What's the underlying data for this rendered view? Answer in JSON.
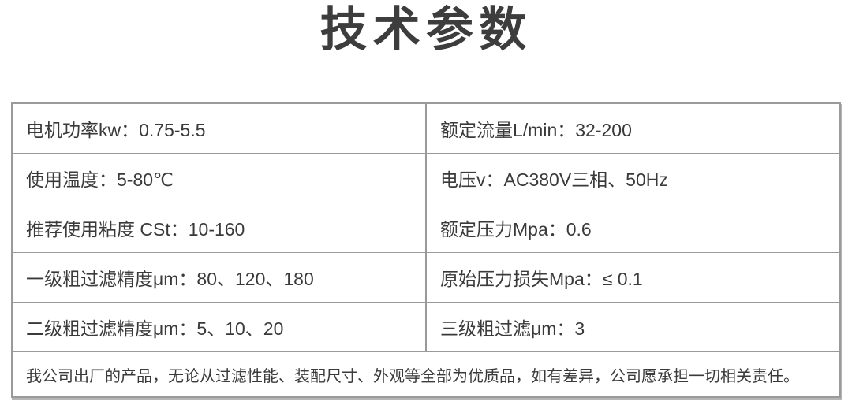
{
  "page": {
    "title": "技术参数"
  },
  "table": {
    "rows": [
      {
        "left": "电机功率kw：0.75-5.5",
        "right": "额定流量L/min：32-200"
      },
      {
        "left": "使用温度：5-80℃",
        "right": "电压v：AC380V三相、50Hz"
      },
      {
        "left": "推荐使用粘度 CSt：10-160",
        "right": "额定压力Mpa：0.6"
      },
      {
        "left": "一级粗过滤精度μm：80、120、180",
        "right": "原始压力损失Mpa：≤ 0.1"
      },
      {
        "left": "二级粗过滤精度μm：5、10、20",
        "right": "三级粗过滤μm：3"
      }
    ],
    "footer_note": "我公司出厂的产品，无论从过滤性能、装配尺寸、外观等全部为优质品，如有差异，公司愿承担一切相关责任。"
  },
  "colors": {
    "text": "#3a3a3a",
    "title": "#3d3d3d",
    "border": "#9a9a9a",
    "background": "#ffffff"
  }
}
